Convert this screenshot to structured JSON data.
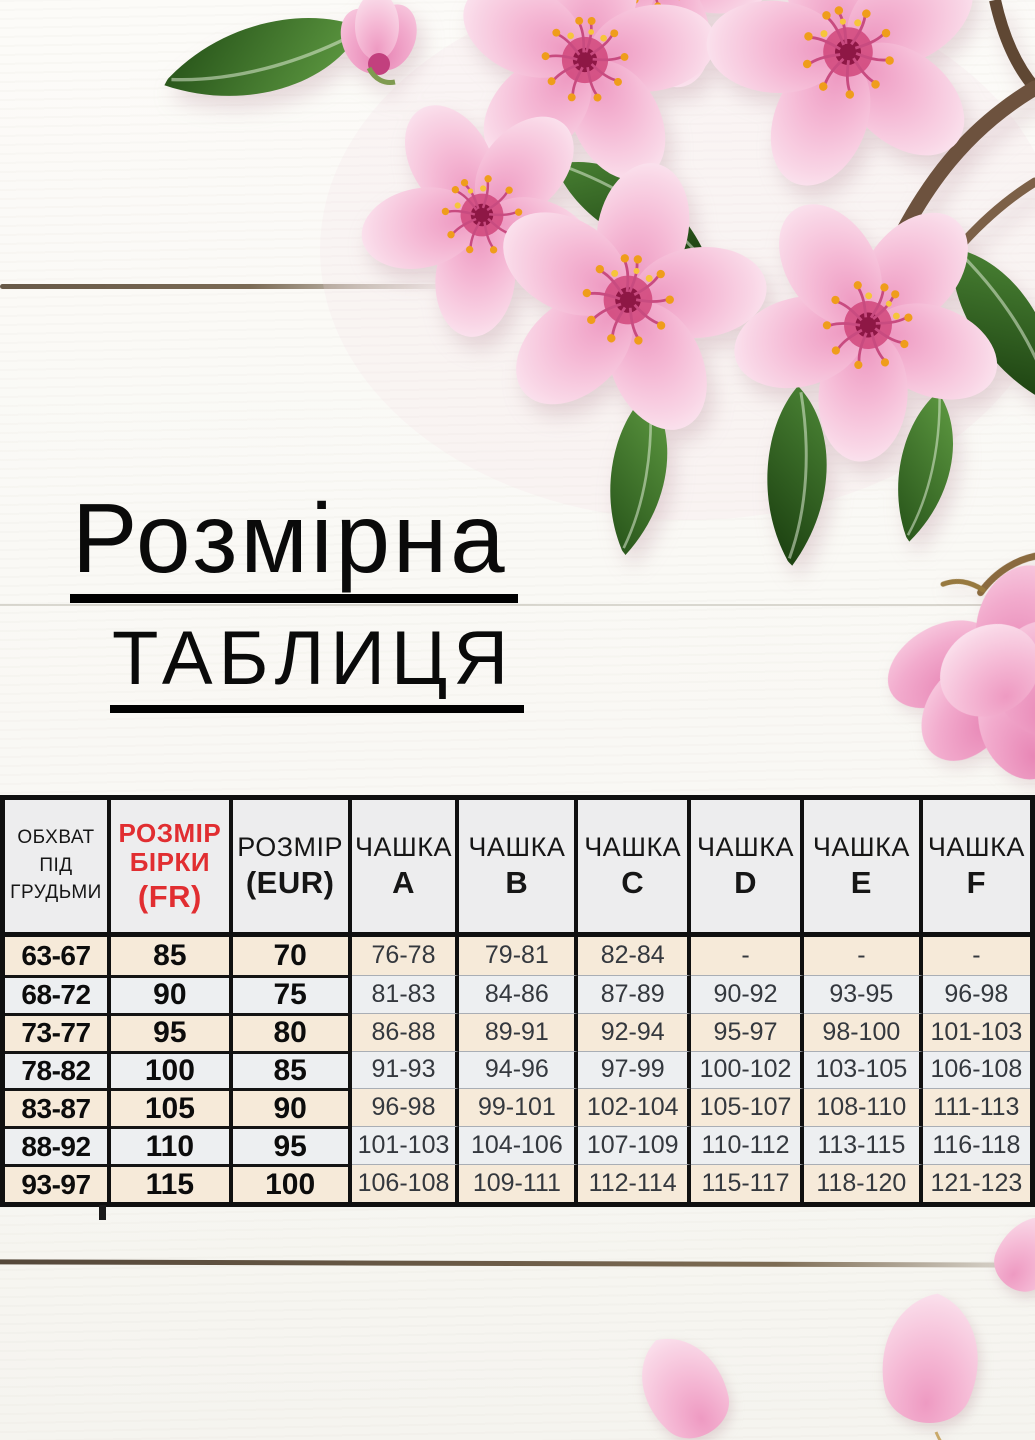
{
  "title": {
    "line1": "Розмірна",
    "line2": "ТАБЛИЦЯ"
  },
  "size_table": {
    "col_headers": [
      {
        "lines": [
          "ОБХВАТ",
          "ПІД",
          "ГРУДЬМИ"
        ],
        "style": "dark"
      },
      {
        "lines": [
          "РОЗМІР",
          "БІРКИ",
          "(FR)"
        ],
        "style": "red"
      },
      {
        "lines": [
          "РОЗМІР",
          "(EUR)"
        ],
        "style": "dark"
      },
      {
        "lines": [
          "ЧАШКА",
          "A"
        ],
        "style": "dark"
      },
      {
        "lines": [
          "ЧАШКА",
          "B"
        ],
        "style": "dark"
      },
      {
        "lines": [
          "ЧАШКА",
          "C"
        ],
        "style": "dark"
      },
      {
        "lines": [
          "ЧАШКА",
          "D"
        ],
        "style": "dark"
      },
      {
        "lines": [
          "ЧАШКА",
          "E"
        ],
        "style": "dark"
      },
      {
        "lines": [
          "ЧАШКА",
          "F"
        ],
        "style": "dark"
      }
    ],
    "rows": [
      [
        "63-67",
        "85",
        "70",
        "76-78",
        "79-81",
        "82-84",
        "-",
        "-",
        "-"
      ],
      [
        "68-72",
        "90",
        "75",
        "81-83",
        "84-86",
        "87-89",
        "90-92",
        "93-95",
        "96-98"
      ],
      [
        "73-77",
        "95",
        "80",
        "86-88",
        "89-91",
        "92-94",
        "95-97",
        "98-100",
        "101-103"
      ],
      [
        "78-82",
        "100",
        "85",
        "91-93",
        "94-96",
        "97-99",
        "100-102",
        "103-105",
        "106-108"
      ],
      [
        "83-87",
        "105",
        "90",
        "96-98",
        "99-101",
        "102-104",
        "105-107",
        "108-110",
        "111-113"
      ],
      [
        "88-92",
        "110",
        "95",
        "101-103",
        "104-106",
        "107-109",
        "110-112",
        "113-115",
        "116-118"
      ],
      [
        "93-97",
        "115",
        "100",
        "106-108",
        "109-111",
        "112-114",
        "115-117",
        "118-120",
        "121-123"
      ]
    ],
    "colors": {
      "accent_red": "#e12e31",
      "row_cream": "#f6ead9",
      "row_light": "#edeff1",
      "header_bg": "#ededee",
      "border": "#101010"
    }
  },
  "decor": {
    "illustration": "cherry-blossom-branch-icon",
    "background": "white-wood-planks",
    "petal_pink": "#f5b9d5",
    "leaf_green": "#3f7a2c",
    "branch_brown": "#6d523e"
  }
}
